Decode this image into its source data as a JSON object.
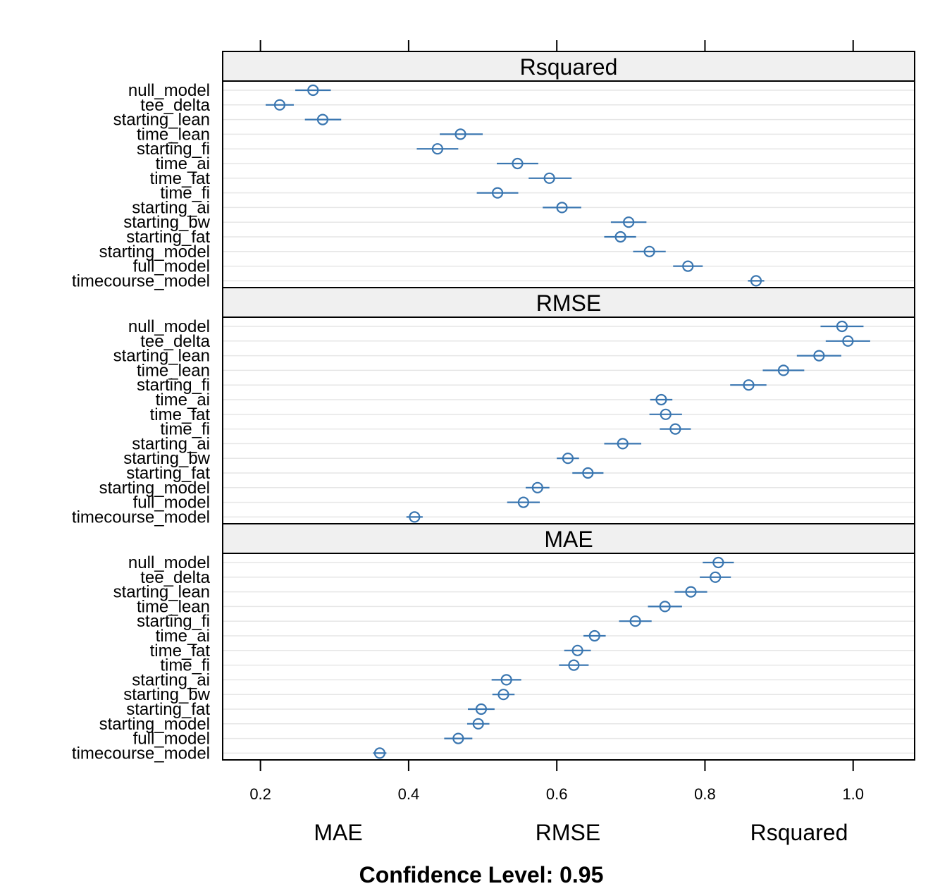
{
  "chart_data": {
    "type": "dotplot-with-confidence-intervals",
    "title": "",
    "footer_title": "Confidence Level: 0.95",
    "bottom_labels": [
      "MAE",
      "RMSE",
      "Rsquared"
    ],
    "x_ticks": [
      "0.2",
      "0.4",
      "0.6",
      "0.8",
      "1.0"
    ],
    "x_tick_values": [
      0.2,
      0.4,
      0.6,
      0.8,
      1.0
    ],
    "xlim": [
      0.149,
      1.083
    ],
    "grid": true,
    "point_color": "#3a76b0",
    "strip_color": "#f0f0f0",
    "models": [
      "null_model",
      "tee_delta",
      "starting_lean",
      "time_lean",
      "starting_fi",
      "time_ai",
      "time_fat",
      "time_fi",
      "starting_ai",
      "starting_bw",
      "starting_fat",
      "starting_model",
      "full_model",
      "timecourse_model"
    ],
    "panels": [
      {
        "name": "Rsquared",
        "estimates": [
          0.271,
          0.226,
          0.284,
          0.47,
          0.439,
          0.547,
          0.59,
          0.52,
          0.607,
          0.697,
          0.686,
          0.725,
          0.777,
          0.869
        ],
        "lower": [
          0.247,
          0.207,
          0.26,
          0.442,
          0.411,
          0.519,
          0.562,
          0.492,
          0.581,
          0.673,
          0.664,
          0.703,
          0.757,
          0.858
        ],
        "upper": [
          0.295,
          0.245,
          0.309,
          0.5,
          0.467,
          0.575,
          0.62,
          0.548,
          0.633,
          0.721,
          0.707,
          0.747,
          0.797,
          0.88
        ]
      },
      {
        "name": "RMSE",
        "estimates": [
          0.985,
          0.993,
          0.954,
          0.906,
          0.859,
          0.741,
          0.747,
          0.76,
          0.689,
          0.615,
          0.642,
          0.574,
          0.555,
          0.408
        ],
        "lower": [
          0.956,
          0.963,
          0.924,
          0.878,
          0.834,
          0.726,
          0.725,
          0.739,
          0.664,
          0.6,
          0.621,
          0.558,
          0.533,
          0.397
        ],
        "upper": [
          1.014,
          1.023,
          0.984,
          0.934,
          0.883,
          0.756,
          0.769,
          0.781,
          0.714,
          0.63,
          0.663,
          0.59,
          0.577,
          0.419
        ]
      },
      {
        "name": "MAE",
        "estimates": [
          0.818,
          0.814,
          0.781,
          0.746,
          0.706,
          0.651,
          0.628,
          0.623,
          0.532,
          0.528,
          0.498,
          0.494,
          0.467,
          0.361
        ],
        "lower": [
          0.797,
          0.793,
          0.759,
          0.723,
          0.684,
          0.636,
          0.61,
          0.603,
          0.512,
          0.513,
          0.48,
          0.479,
          0.448,
          0.352
        ],
        "upper": [
          0.839,
          0.835,
          0.803,
          0.769,
          0.728,
          0.666,
          0.646,
          0.643,
          0.552,
          0.543,
          0.516,
          0.509,
          0.486,
          0.37
        ]
      }
    ]
  }
}
